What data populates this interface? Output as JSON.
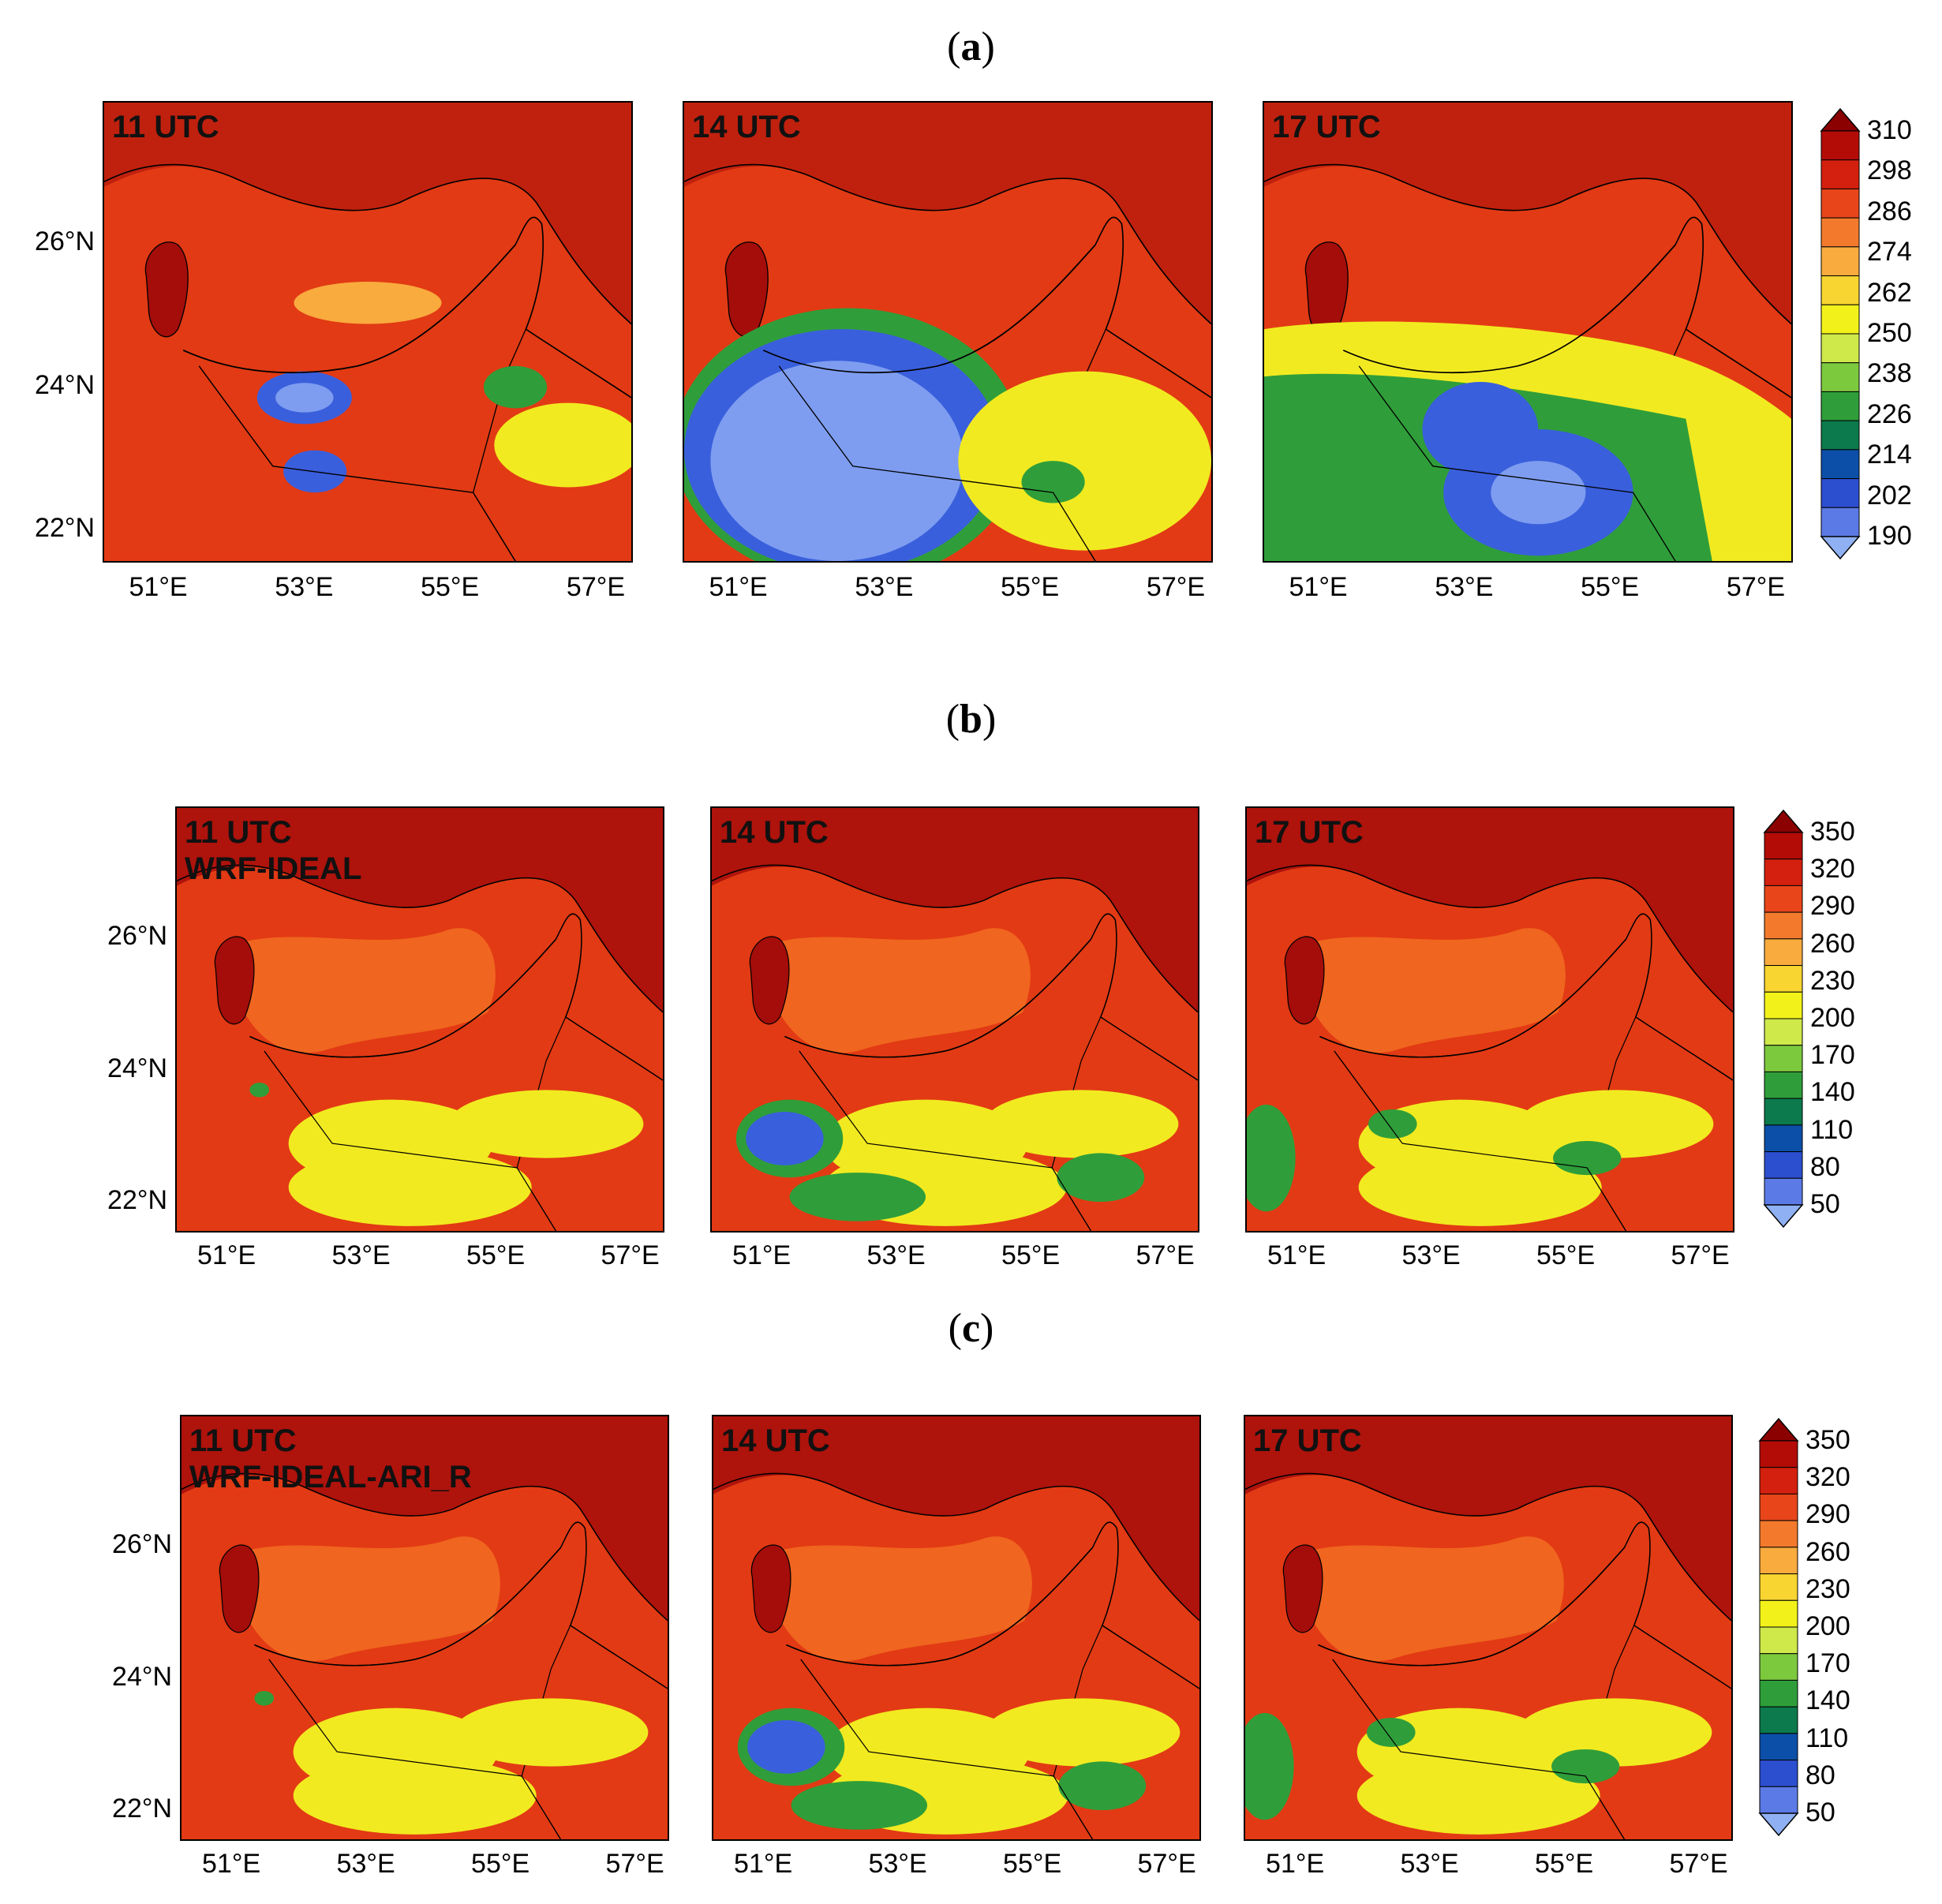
{
  "sections": [
    {
      "label": "a",
      "panel_tags": [
        "11 UTC",
        "14 UTC",
        "17 UTC"
      ],
      "extra_tag": "",
      "colorbar": [
        "310",
        "298",
        "286",
        "274",
        "262",
        "250",
        "238",
        "226",
        "214",
        "202",
        "190"
      ]
    },
    {
      "label": "b",
      "panel_tags": [
        "11 UTC",
        "14 UTC",
        "17 UTC"
      ],
      "extra_tag": "WRF-IDEAL",
      "colorbar": [
        "350",
        "320",
        "290",
        "260",
        "230",
        "200",
        "170",
        "140",
        "110",
        "80",
        "50"
      ]
    },
    {
      "label": "c",
      "panel_tags": [
        "11 UTC",
        "14 UTC",
        "17 UTC"
      ],
      "extra_tag": "WRF-IDEAL-ARI_R",
      "colorbar": [
        "350",
        "320",
        "290",
        "260",
        "230",
        "200",
        "170",
        "140",
        "110",
        "80",
        "50"
      ]
    }
  ],
  "lat_ticks": [
    "26°N",
    "24°N",
    "22°N"
  ],
  "lon_ticks": [
    "51°E",
    "53°E",
    "55°E",
    "57°E"
  ],
  "colorbar_colors": [
    "#8b0000",
    "#b30c06",
    "#d4200e",
    "#e8461a",
    "#f37a2c",
    "#f9ab3e",
    "#f8d530",
    "#f2f21a",
    "#cfe84a",
    "#7cc93e",
    "#2f9e3a",
    "#0c7a4c",
    "#0c4fa8",
    "#2c4fd0",
    "#5b7ae6",
    "#8fb0f2"
  ],
  "map_colors": {
    "background": "#e23a14",
    "dark": "#a40d0a",
    "land": "#c51b10",
    "bright": "#f26a20",
    "warm": "#f9ab3e",
    "yellow": "#f2ea20",
    "green": "#2f9e3a",
    "blue": "#3a5fdc",
    "lightblue": "#7e9df0"
  }
}
